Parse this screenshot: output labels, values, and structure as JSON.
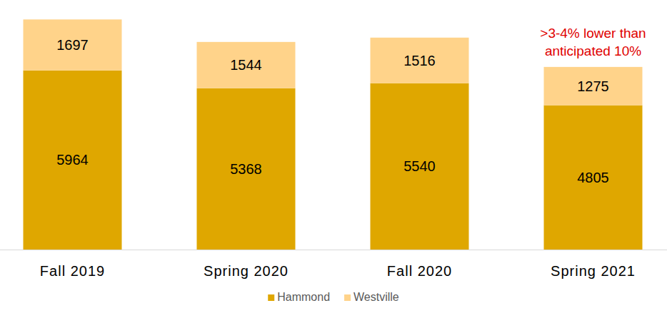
{
  "chart_data": {
    "type": "bar",
    "stacked": true,
    "data_labels": true,
    "tick_labels": "x",
    "grid": false,
    "legend": "bottom",
    "categories": [
      "Fall 2019",
      "Spring 2020",
      "Fall 2020",
      "Spring 2021"
    ],
    "series": [
      {
        "name": "Hammond",
        "color": "#dfa700",
        "values": [
          5964,
          5368,
          5540,
          4805
        ]
      },
      {
        "name": "Westville",
        "color": "#ffd38a",
        "values": [
          1697,
          1544,
          1516,
          1275
        ]
      }
    ],
    "ylim": [
      0,
      8000
    ],
    "annotation": ">3-4% lower than anticipated 10%"
  }
}
